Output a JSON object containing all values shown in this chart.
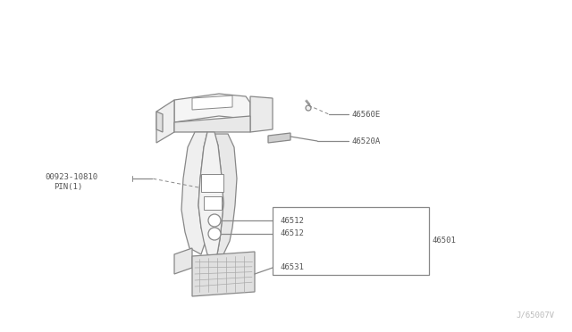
{
  "bg_color": "#ffffff",
  "line_color": "#888888",
  "text_color": "#555555",
  "fig_width": 6.4,
  "fig_height": 3.72,
  "dpi": 100,
  "watermark": "J/65007V",
  "label_46560E": "46560E",
  "label_46520A": "46520A",
  "label_00923": "00923-10810",
  "label_PIN1": "PIN(1)",
  "label_46512": "46512",
  "label_46501": "46501",
  "label_46531": "46531",
  "font_size": 6.5
}
